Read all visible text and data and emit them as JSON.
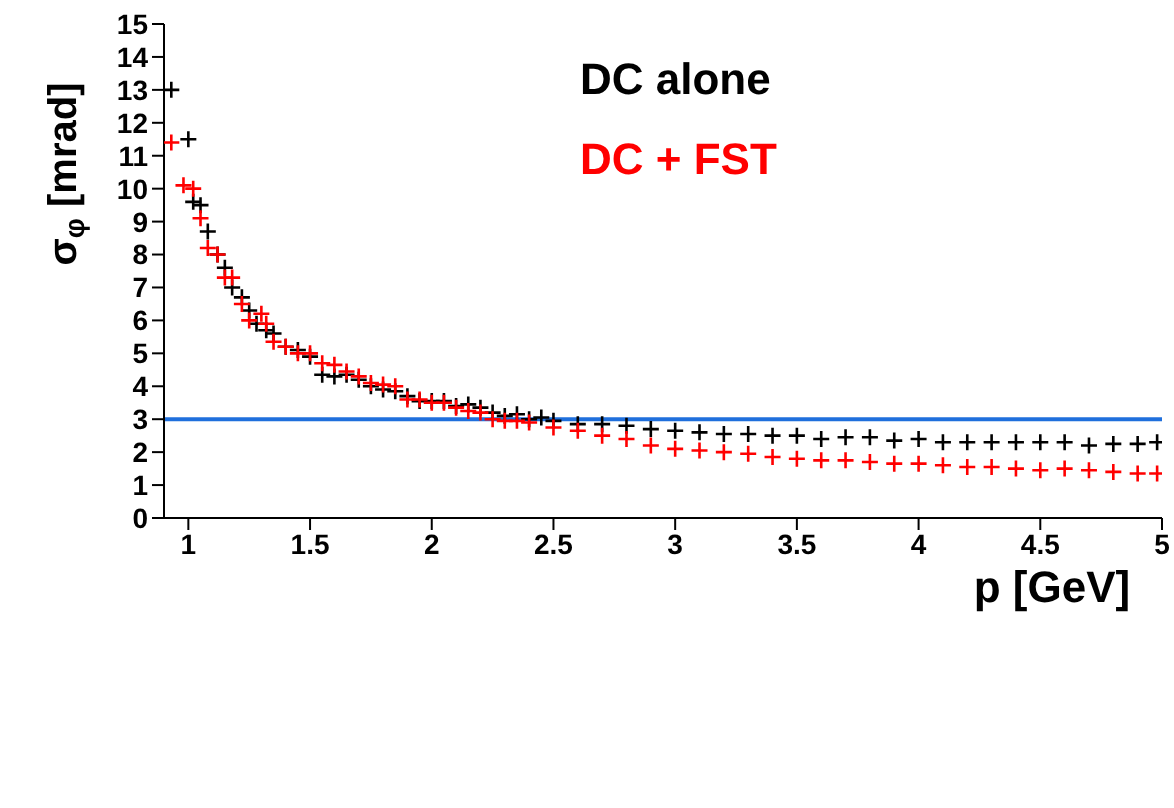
{
  "chart_data": {
    "type": "scatter",
    "xlabel": "p [GeV]",
    "ylabel": "σ$_{φ}$ [mrad]",
    "xlim": [
      0.9,
      5
    ],
    "xticks": [
      1,
      1.5,
      2,
      2.5,
      3,
      3.5,
      4,
      4.5,
      5
    ],
    "ylim": [
      0,
      15
    ],
    "yticks": [
      0,
      1,
      2,
      3,
      4,
      5,
      6,
      7,
      8,
      9,
      10,
      11,
      12,
      13,
      14,
      15
    ],
    "marker": "cross",
    "legend": "top right",
    "grid": false,
    "ref_lines": [
      {
        "axis": "y",
        "value": 3,
        "color": "#1f6fdc"
      }
    ],
    "series": [
      {
        "name": "DC alone",
        "color": "#000000",
        "x": [
          0.93,
          1.0,
          1.02,
          1.05,
          1.08,
          1.12,
          1.15,
          1.18,
          1.22,
          1.25,
          1.28,
          1.32,
          1.35,
          1.4,
          1.45,
          1.5,
          1.55,
          1.6,
          1.65,
          1.7,
          1.75,
          1.8,
          1.85,
          1.9,
          1.95,
          2.0,
          2.05,
          2.1,
          2.15,
          2.2,
          2.25,
          2.3,
          2.35,
          2.4,
          2.45,
          2.5,
          2.6,
          2.7,
          2.8,
          2.9,
          3.0,
          3.1,
          3.2,
          3.3,
          3.4,
          3.5,
          3.6,
          3.7,
          3.8,
          3.9,
          4.0,
          4.1,
          4.2,
          4.3,
          4.4,
          4.5,
          4.6,
          4.7,
          4.8,
          4.9,
          4.98
        ],
        "values": [
          13.0,
          11.5,
          9.6,
          9.5,
          8.7,
          8.0,
          7.6,
          7.0,
          6.7,
          6.3,
          5.9,
          5.7,
          5.6,
          5.2,
          5.1,
          4.9,
          4.35,
          4.3,
          4.35,
          4.2,
          4.0,
          3.9,
          3.85,
          3.7,
          3.55,
          3.55,
          3.55,
          3.4,
          3.45,
          3.35,
          3.2,
          3.1,
          3.15,
          3.0,
          3.05,
          2.95,
          2.85,
          2.85,
          2.8,
          2.7,
          2.65,
          2.6,
          2.55,
          2.55,
          2.5,
          2.5,
          2.4,
          2.45,
          2.45,
          2.35,
          2.4,
          2.3,
          2.3,
          2.3,
          2.3,
          2.3,
          2.3,
          2.2,
          2.25,
          2.25,
          2.3
        ]
      },
      {
        "name": "DC + FST",
        "color": "#ff0000",
        "x": [
          0.93,
          0.98,
          1.02,
          1.05,
          1.08,
          1.12,
          1.15,
          1.18,
          1.22,
          1.25,
          1.3,
          1.32,
          1.35,
          1.4,
          1.45,
          1.5,
          1.55,
          1.6,
          1.65,
          1.7,
          1.75,
          1.8,
          1.85,
          1.9,
          1.95,
          2.0,
          2.05,
          2.1,
          2.15,
          2.2,
          2.25,
          2.3,
          2.35,
          2.4,
          2.5,
          2.6,
          2.7,
          2.8,
          2.9,
          3.0,
          3.1,
          3.2,
          3.3,
          3.4,
          3.5,
          3.6,
          3.7,
          3.8,
          3.9,
          4.0,
          4.1,
          4.2,
          4.3,
          4.4,
          4.5,
          4.6,
          4.7,
          4.8,
          4.9,
          4.98
        ],
        "values": [
          11.4,
          10.1,
          10.0,
          9.1,
          8.2,
          8.0,
          7.3,
          7.3,
          6.5,
          6.0,
          6.2,
          5.9,
          5.35,
          5.2,
          5.0,
          5.0,
          4.7,
          4.65,
          4.45,
          4.3,
          4.1,
          4.05,
          4.0,
          3.6,
          3.6,
          3.5,
          3.5,
          3.35,
          3.25,
          3.2,
          3.0,
          2.95,
          2.95,
          2.9,
          2.75,
          2.65,
          2.5,
          2.4,
          2.2,
          2.1,
          2.05,
          2.0,
          1.95,
          1.85,
          1.8,
          1.75,
          1.75,
          1.7,
          1.65,
          1.65,
          1.6,
          1.55,
          1.55,
          1.5,
          1.45,
          1.5,
          1.45,
          1.4,
          1.35,
          1.35
        ]
      }
    ]
  }
}
